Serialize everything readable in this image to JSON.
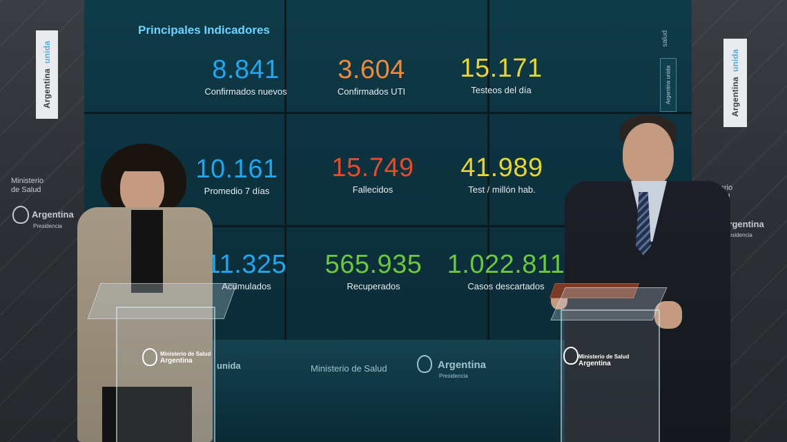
{
  "panel": {
    "title": "Principales Indicadores",
    "stats": [
      {
        "value": "8.841",
        "label": "Confirmados nuevos",
        "color": "#1ea8f2"
      },
      {
        "value": "3.604",
        "label": "Confirmados UTI",
        "color": "#ee8a3a"
      },
      {
        "value": "15.171",
        "label": "Testeos del día",
        "color": "#e7d533"
      },
      {
        "value": "10.161",
        "label": "Promedio 7 días",
        "color": "#1ea8f2"
      },
      {
        "value": "15.749",
        "label": "Fallecidos",
        "color": "#e44d2b"
      },
      {
        "value": "41.989",
        "label": "Test / millón hab.",
        "color": "#e7d533"
      },
      {
        "value": "11.325",
        "label": "Acumulados",
        "color": "#1ea8f2"
      },
      {
        "value": "565.935",
        "label": "Recuperados",
        "color": "#6cc83c"
      },
      {
        "value": "1.022.811",
        "label": "Casos descartados",
        "color": "#6cc83c"
      }
    ]
  },
  "branding": {
    "argentina": "Argentina",
    "unida": "unida",
    "ministerio": "Ministerio de Salud",
    "ministerio_l1": "Ministerio",
    "ministerio_l2": "de Salud",
    "presidencia": "Presidencia",
    "salud": "salud",
    "floor_unida": "unida",
    "floor_ministerio": "Ministerio de Salud",
    "floor_argentina": "Argentina",
    "floor_presidencia": "Presidencia",
    "wall_badge": "Argentina unida"
  },
  "podiums": {
    "logo_line1": "Ministerio de Salud",
    "logo_line2": "Argentina"
  }
}
